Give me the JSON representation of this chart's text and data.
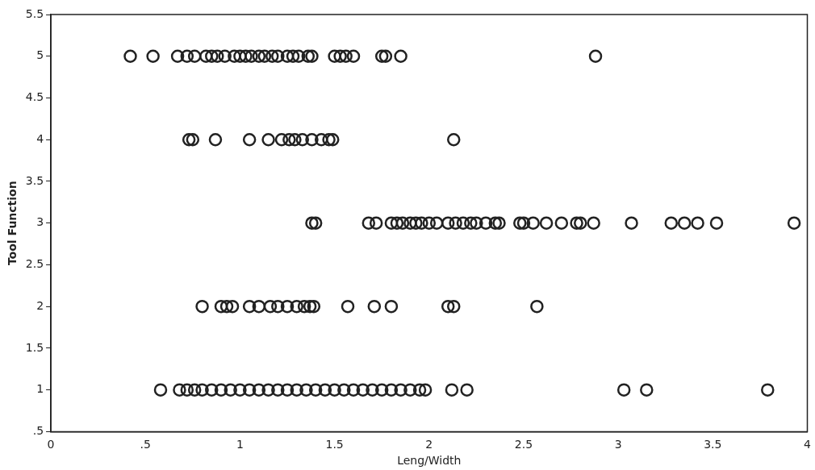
{
  "chart_data": {
    "type": "scatter",
    "xlabel": "Leng/Width",
    "ylabel": "Tool Function",
    "marker": "circle",
    "grid": false,
    "legend": false,
    "xlim": [
      0,
      4
    ],
    "ylim": [
      0.5,
      5.5
    ],
    "xticks": [
      0,
      {
        "value": 0.5,
        "label": ".5"
      },
      1,
      1.5,
      2,
      2.5,
      3,
      3.5,
      4
    ],
    "yticks": [
      {
        "value": 0.5,
        "label": ".5"
      },
      1,
      1.5,
      2,
      2.5,
      3,
      3.5,
      4,
      4.5,
      5,
      5.5
    ],
    "series": [
      {
        "color": "#222222",
        "x": [
          0.42,
          0.54,
          0.67,
          0.72,
          0.76,
          0.82,
          0.85,
          0.88,
          0.92,
          0.97,
          1.0,
          1.03,
          1.06,
          1.1,
          1.13,
          1.17,
          1.2,
          1.25,
          1.28,
          1.31,
          1.36,
          1.38,
          1.5,
          1.53,
          1.56,
          1.6,
          1.75,
          1.77,
          1.85,
          2.88,
          0.73,
          0.75,
          0.87,
          1.05,
          1.15,
          1.22,
          1.26,
          1.29,
          1.33,
          1.38,
          1.43,
          1.47,
          1.49,
          2.13,
          1.38,
          1.4,
          1.68,
          1.72,
          1.8,
          1.83,
          1.86,
          1.9,
          1.93,
          1.96,
          2.0,
          2.04,
          2.1,
          2.14,
          2.18,
          2.22,
          2.25,
          2.3,
          2.35,
          2.37,
          2.48,
          2.5,
          2.55,
          2.62,
          2.7,
          2.78,
          2.8,
          2.87,
          3.07,
          3.28,
          3.35,
          3.42,
          3.52,
          3.93,
          0.8,
          0.9,
          0.93,
          0.96,
          1.05,
          1.1,
          1.16,
          1.2,
          1.25,
          1.3,
          1.34,
          1.37,
          1.39,
          1.57,
          1.71,
          1.8,
          2.1,
          2.13,
          2.57,
          0.58,
          0.68,
          0.72,
          0.76,
          0.8,
          0.85,
          0.9,
          0.95,
          1.0,
          1.05,
          1.1,
          1.15,
          1.2,
          1.25,
          1.3,
          1.35,
          1.4,
          1.45,
          1.5,
          1.55,
          1.6,
          1.65,
          1.7,
          1.75,
          1.8,
          1.85,
          1.9,
          1.95,
          1.98,
          2.12,
          2.2,
          3.03,
          3.15,
          3.79
        ],
        "values": [
          5,
          5,
          5,
          5,
          5,
          5,
          5,
          5,
          5,
          5,
          5,
          5,
          5,
          5,
          5,
          5,
          5,
          5,
          5,
          5,
          5,
          5,
          5,
          5,
          5,
          5,
          5,
          5,
          5,
          5,
          4,
          4,
          4,
          4,
          4,
          4,
          4,
          4,
          4,
          4,
          4,
          4,
          4,
          4,
          3,
          3,
          3,
          3,
          3,
          3,
          3,
          3,
          3,
          3,
          3,
          3,
          3,
          3,
          3,
          3,
          3,
          3,
          3,
          3,
          3,
          3,
          3,
          3,
          3,
          3,
          3,
          3,
          3,
          3,
          3,
          3,
          3,
          3,
          2,
          2,
          2,
          2,
          2,
          2,
          2,
          2,
          2,
          2,
          2,
          2,
          2,
          2,
          2,
          2,
          2,
          2,
          2,
          1,
          1,
          1,
          1,
          1,
          1,
          1,
          1,
          1,
          1,
          1,
          1,
          1,
          1,
          1,
          1,
          1,
          1,
          1,
          1,
          1,
          1,
          1,
          1,
          1,
          1,
          1,
          1,
          1,
          1,
          1,
          1,
          1,
          1
        ]
      }
    ]
  }
}
